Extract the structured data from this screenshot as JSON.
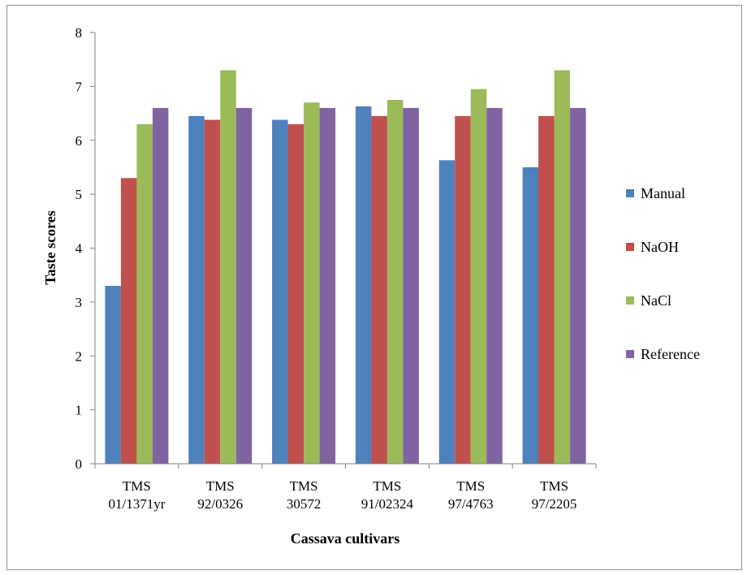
{
  "chart_data": {
    "type": "bar",
    "title": "",
    "xlabel": "Cassava cultivars",
    "ylabel": "Taste scores",
    "ylim": [
      0,
      8
    ],
    "yticks": [
      "0",
      "1",
      "2",
      "3",
      "4",
      "5",
      "6",
      "7",
      "8"
    ],
    "grid": false,
    "legend_position": "right",
    "categories": [
      [
        "TMS",
        "01/1371yr"
      ],
      [
        "TMS",
        "92/0326"
      ],
      [
        "TMS",
        "30572"
      ],
      [
        "TMS",
        "91/02324"
      ],
      [
        "TMS",
        "97/4763"
      ],
      [
        "TMS",
        "97/2205"
      ]
    ],
    "series": [
      {
        "name": "Manual",
        "color": "#4f81bd",
        "values": [
          3.3,
          6.45,
          6.38,
          6.63,
          5.63,
          5.5
        ]
      },
      {
        "name": "NaOH",
        "color": "#c0504d",
        "values": [
          5.3,
          6.38,
          6.3,
          6.45,
          6.45,
          6.45
        ]
      },
      {
        "name": "NaCl",
        "color": "#9bbb59",
        "values": [
          6.3,
          7.3,
          6.7,
          6.75,
          6.95,
          7.3
        ]
      },
      {
        "name": "Reference",
        "color": "#8064a2",
        "values": [
          6.6,
          6.6,
          6.6,
          6.6,
          6.6,
          6.6
        ]
      }
    ]
  }
}
